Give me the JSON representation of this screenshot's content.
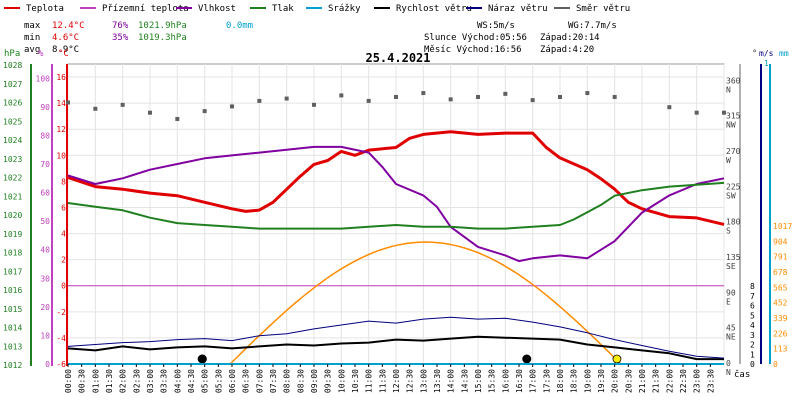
{
  "legend": [
    {
      "label": "Teplota",
      "color": "#e00000"
    },
    {
      "label": "Přízemní teplota",
      "color": "#c040c0"
    },
    {
      "label": "Vlhkost",
      "color": "#8000a0"
    },
    {
      "label": "Tlak",
      "color": "#208020"
    },
    {
      "label": "Srážky",
      "color": "#00a0d0"
    },
    {
      "label": "Rychlost větru",
      "color": "#000000"
    },
    {
      "label": "Náraz větru",
      "color": "#000080"
    },
    {
      "label": "Směr větru",
      "color": "#606060"
    }
  ],
  "stats": {
    "max": {
      "label": "max",
      "temp": "12.4°C",
      "hum": "76%",
      "press": "1021.9hPa",
      "rain": "0.0mm"
    },
    "min": {
      "label": "min",
      "temp": "4.6°C",
      "hum": "35%",
      "press": "1019.3hPa"
    },
    "avg": {
      "label": "avg",
      "temp": "8.9°C"
    }
  },
  "info": {
    "ws": "WS:5m/s",
    "wg": "WG:7.7m/s",
    "sun": "Slunce Východ:05:56",
    "sun_set": "Západ:20:14",
    "moon": "Měsíc Východ:16:56",
    "moon_set": "Západ:4:20"
  },
  "date": "25.4.2021",
  "unit_labels": {
    "hpa": "hPa",
    "pct": "%",
    "degc": "°C",
    "deg": "°",
    "ms": "m/s",
    "mm": "mm",
    "cas": "čas"
  },
  "colors": {
    "temp": "#e00000",
    "hum": "#8000a0",
    "press": "#208020",
    "rain": "#00a0d0",
    "wind": "#000000",
    "gust": "#000080",
    "dir": "#606060",
    "sun": "#ff8c00"
  },
  "chart_data": {
    "type": "line",
    "x_ticks": [
      "00:00",
      "00:30",
      "01:00",
      "01:30",
      "02:00",
      "02:30",
      "03:00",
      "03:30",
      "04:00",
      "04:30",
      "05:00",
      "05:30",
      "06:00",
      "06:30",
      "07:00",
      "07:30",
      "08:00",
      "08:30",
      "09:00",
      "09:30",
      "10:00",
      "10:30",
      "11:00",
      "11:30",
      "12:00",
      "12:30",
      "13:00",
      "13:30",
      "14:00",
      "14:30",
      "15:00",
      "15:30",
      "16:00",
      "16:30",
      "17:00",
      "17:30",
      "18:00",
      "18:30",
      "19:00",
      "19:30",
      "20:00",
      "20:30",
      "21:00",
      "21:30",
      "22:00",
      "22:30",
      "23:00",
      "23:30"
    ],
    "axes": {
      "hpa": {
        "ticks": [
          "1028",
          "1027",
          "1026",
          "1025",
          "1024",
          "1023",
          "1022",
          "1021",
          "1020",
          "1019",
          "1018",
          "1017",
          "1016",
          "1015",
          "1014",
          "1013",
          "1012"
        ]
      },
      "pct": {
        "ticks": [
          "100",
          "90",
          "80",
          "70",
          "60",
          "50",
          "40",
          "30",
          "20",
          "10",
          "0"
        ]
      },
      "degc": {
        "ticks": [
          "16",
          "14",
          "12",
          "10",
          "8",
          "6",
          "4",
          "2",
          "0",
          "-2",
          "-4",
          "-6"
        ]
      },
      "dir": {
        "ticks": [
          {
            "deg": "360",
            "lab": "N"
          },
          {
            "deg": "315",
            "lab": "NW"
          },
          {
            "deg": "270",
            "lab": "W"
          },
          {
            "deg": "225",
            "lab": "SW"
          },
          {
            "deg": "180",
            "lab": "S"
          },
          {
            "deg": "135",
            "lab": "SE"
          },
          {
            "deg": "90",
            "lab": "E"
          },
          {
            "deg": "45",
            "lab": "NE"
          },
          {
            "deg": "0",
            "lab": "N"
          }
        ]
      },
      "ms": {
        "ticks": [
          "8",
          "7",
          "6",
          "5",
          "4",
          "3",
          "2",
          "1",
          "0"
        ],
        "top": "1"
      },
      "mm": {
        "ticks": [
          "1017",
          "904",
          "791",
          "678",
          "565",
          "452",
          "339",
          "226",
          "113",
          "0"
        ]
      }
    },
    "series": [
      {
        "name": "Teplota",
        "unit": "°C",
        "points": [
          [
            0,
            8.3
          ],
          [
            1,
            7.6
          ],
          [
            2,
            7.4
          ],
          [
            3,
            7.1
          ],
          [
            4,
            6.9
          ],
          [
            5,
            6.4
          ],
          [
            6,
            5.9
          ],
          [
            6.5,
            5.7
          ],
          [
            7,
            5.8
          ],
          [
            7.5,
            6.4
          ],
          [
            8,
            7.4
          ],
          [
            8.5,
            8.4
          ],
          [
            9,
            9.3
          ],
          [
            9.5,
            9.6
          ],
          [
            10,
            10.3
          ],
          [
            10.5,
            10.0
          ],
          [
            11,
            10.4
          ],
          [
            12,
            10.6
          ],
          [
            12.5,
            11.3
          ],
          [
            13,
            11.6
          ],
          [
            14,
            11.8
          ],
          [
            15,
            11.6
          ],
          [
            16,
            11.7
          ],
          [
            17,
            11.7
          ],
          [
            17.5,
            10.6
          ],
          [
            18,
            9.8
          ],
          [
            19,
            8.9
          ],
          [
            19.5,
            8.2
          ],
          [
            20,
            7.4
          ],
          [
            20.5,
            6.4
          ],
          [
            21,
            5.9
          ],
          [
            22,
            5.3
          ],
          [
            23,
            5.2
          ],
          [
            24,
            4.7
          ]
        ]
      },
      {
        "name": "Vlhkost",
        "unit": "%",
        "points": [
          [
            0,
            66
          ],
          [
            1,
            63
          ],
          [
            2,
            65
          ],
          [
            3,
            68
          ],
          [
            4,
            70
          ],
          [
            5,
            72
          ],
          [
            6,
            73
          ],
          [
            7,
            74
          ],
          [
            8,
            75
          ],
          [
            9,
            76
          ],
          [
            10,
            76
          ],
          [
            11,
            74
          ],
          [
            11.5,
            69
          ],
          [
            12,
            63
          ],
          [
            13,
            59
          ],
          [
            13.5,
            55
          ],
          [
            14,
            48
          ],
          [
            15,
            41
          ],
          [
            16,
            38
          ],
          [
            16.5,
            36
          ],
          [
            17,
            37
          ],
          [
            18,
            38
          ],
          [
            19,
            37
          ],
          [
            19.5,
            40
          ],
          [
            20,
            43
          ],
          [
            21,
            53
          ],
          [
            22,
            59
          ],
          [
            23,
            63
          ],
          [
            24,
            65
          ]
        ]
      },
      {
        "name": "Tlak",
        "unit": "hPa",
        "points": [
          [
            0,
            1020.8
          ],
          [
            1,
            1020.6
          ],
          [
            2,
            1020.4
          ],
          [
            3,
            1020.0
          ],
          [
            4,
            1019.7
          ],
          [
            5,
            1019.6
          ],
          [
            6,
            1019.5
          ],
          [
            7,
            1019.4
          ],
          [
            8,
            1019.4
          ],
          [
            9,
            1019.4
          ],
          [
            10,
            1019.4
          ],
          [
            11,
            1019.5
          ],
          [
            12,
            1019.6
          ],
          [
            13,
            1019.5
          ],
          [
            14,
            1019.5
          ],
          [
            15,
            1019.4
          ],
          [
            16,
            1019.4
          ],
          [
            17,
            1019.5
          ],
          [
            18,
            1019.6
          ],
          [
            18.5,
            1019.9
          ],
          [
            19,
            1020.3
          ],
          [
            19.5,
            1020.7
          ],
          [
            20,
            1021.2
          ],
          [
            21,
            1021.5
          ],
          [
            22,
            1021.7
          ],
          [
            23,
            1021.8
          ],
          [
            24,
            1021.9
          ]
        ]
      },
      {
        "name": "Rychlost větru",
        "unit": "m/s",
        "points": [
          [
            0,
            1.6
          ],
          [
            1,
            1.4
          ],
          [
            2,
            1.8
          ],
          [
            3,
            1.5
          ],
          [
            4,
            1.7
          ],
          [
            5,
            1.8
          ],
          [
            6,
            1.6
          ],
          [
            7,
            1.8
          ],
          [
            8,
            2.0
          ],
          [
            9,
            1.9
          ],
          [
            10,
            2.1
          ],
          [
            11,
            2.2
          ],
          [
            12,
            2.5
          ],
          [
            13,
            2.4
          ],
          [
            14,
            2.6
          ],
          [
            15,
            2.8
          ],
          [
            16,
            2.7
          ],
          [
            17,
            2.6
          ],
          [
            18,
            2.5
          ],
          [
            19,
            2.0
          ],
          [
            20,
            1.7
          ],
          [
            21,
            1.4
          ],
          [
            22,
            1.1
          ],
          [
            23,
            0.5
          ],
          [
            24,
            0.5
          ]
        ]
      },
      {
        "name": "Náraz větru",
        "unit": "m/s",
        "points": [
          [
            0,
            1.8
          ],
          [
            1,
            2.0
          ],
          [
            2,
            2.2
          ],
          [
            3,
            2.3
          ],
          [
            4,
            2.5
          ],
          [
            5,
            2.6
          ],
          [
            6,
            2.4
          ],
          [
            7,
            2.9
          ],
          [
            8,
            3.1
          ],
          [
            9,
            3.6
          ],
          [
            10,
            4.0
          ],
          [
            11,
            4.4
          ],
          [
            12,
            4.2
          ],
          [
            13,
            4.6
          ],
          [
            14,
            4.8
          ],
          [
            15,
            4.6
          ],
          [
            16,
            4.7
          ],
          [
            17,
            4.3
          ],
          [
            18,
            3.8
          ],
          [
            19,
            3.2
          ],
          [
            20,
            2.5
          ],
          [
            21,
            1.9
          ],
          [
            22,
            1.3
          ],
          [
            23,
            0.8
          ],
          [
            24,
            0.6
          ]
        ]
      },
      {
        "name": "Směr větru",
        "unit": "°",
        "points": [
          [
            0,
            333
          ],
          [
            1,
            325
          ],
          [
            2,
            330
          ],
          [
            3,
            320
          ],
          [
            4,
            312
          ],
          [
            5,
            322
          ],
          [
            6,
            328
          ],
          [
            7,
            335
          ],
          [
            8,
            338
          ],
          [
            9,
            330
          ],
          [
            10,
            342
          ],
          [
            11,
            335
          ],
          [
            12,
            340
          ],
          [
            13,
            345
          ],
          [
            14,
            337
          ],
          [
            15,
            340
          ],
          [
            16,
            344
          ],
          [
            17,
            336
          ],
          [
            18,
            340
          ],
          [
            19,
            345
          ],
          [
            20,
            340
          ],
          [
            22,
            327
          ],
          [
            23,
            320
          ],
          [
            24,
            320
          ]
        ]
      },
      {
        "name": "Srážky",
        "unit": "mm",
        "points": [
          [
            0,
            0
          ],
          [
            24,
            0
          ]
        ]
      }
    ]
  }
}
